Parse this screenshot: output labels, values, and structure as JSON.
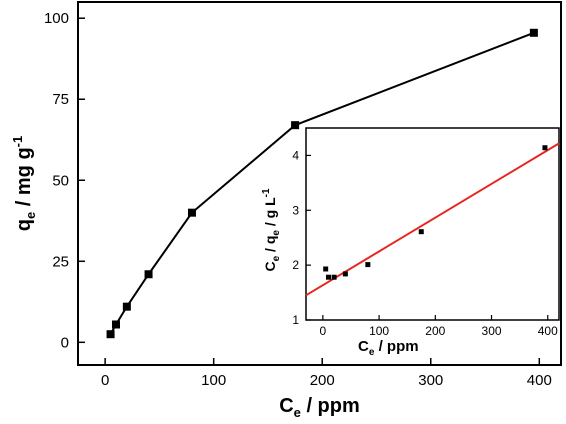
{
  "chart_data": [
    {
      "type": "line",
      "xlabel": {
        "main": "C",
        "sub": "e",
        "rest": " / ppm"
      },
      "ylabel": {
        "main": "q",
        "sub": "e",
        "rest": " / mg g",
        "sup": "-1"
      },
      "xlim": [
        -25,
        420
      ],
      "ylim": [
        -7,
        105
      ],
      "x_ticks": [
        0,
        100,
        200,
        300,
        400
      ],
      "y_ticks": [
        0,
        25,
        50,
        75,
        100
      ],
      "color": "#000000",
      "series": [
        {
          "x": [
            5,
            10,
            20,
            40,
            80,
            175,
            395
          ],
          "y": [
            2.5,
            5.5,
            11,
            21,
            40,
            67,
            95.5
          ]
        }
      ]
    },
    {
      "type": "scatter",
      "xlabel": {
        "main": "C",
        "sub": "e",
        "rest": " / ppm"
      },
      "ylabel": {
        "main": "C",
        "sub": "e",
        "mid": " / q",
        "sub2": "e",
        "rest": " / g L",
        "sup": "-1"
      },
      "xlim": [
        -30,
        420
      ],
      "ylim": [
        1,
        4.5
      ],
      "x_ticks": [
        0,
        100,
        200,
        300,
        400
      ],
      "y_ticks": [
        1,
        2,
        3,
        4
      ],
      "point_color": "#000000",
      "fit_color": "#e8251f",
      "series": [
        {
          "x": [
            5,
            10,
            20,
            40,
            80,
            175,
            395
          ],
          "y": [
            1.93,
            1.78,
            1.78,
            1.84,
            2.01,
            2.61,
            4.14
          ]
        }
      ],
      "fit_line": {
        "x": [
          -30,
          420
        ],
        "y": [
          1.45,
          4.22
        ]
      }
    }
  ]
}
